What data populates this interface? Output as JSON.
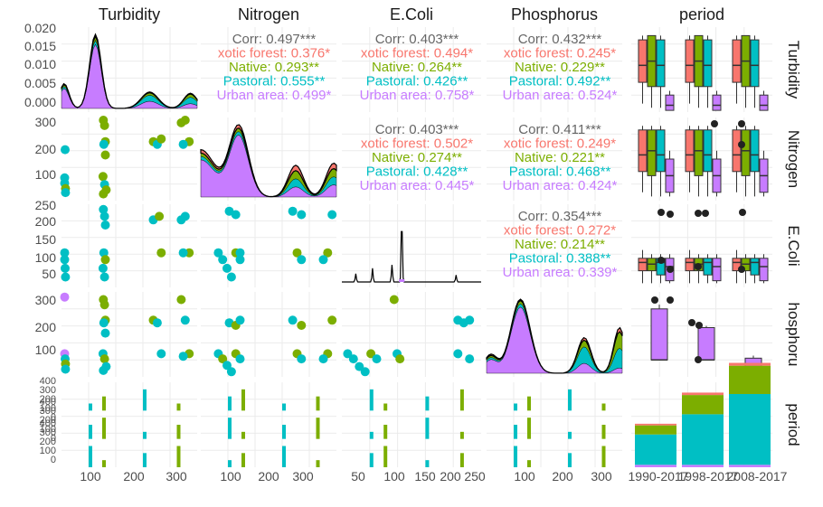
{
  "colors": {
    "Exotic forest": "#F8766D",
    "Native": "#7CAE00",
    "Pastoral": "#00BFC4",
    "Urban area": "#C77CFF",
    "overall": "#666666",
    "panel_bg": "#ffffff",
    "grid": "#ebebeb"
  },
  "chart_data": {
    "type": "scatter",
    "variables": [
      "Turbidity",
      "Nitrogen",
      "E.Coli",
      "Phosphorus",
      "period"
    ],
    "groups": [
      "Exotic forest",
      "Native",
      "Pastoral",
      "Urban area"
    ],
    "strip_labels": {
      "top": [
        "Turbidity",
        "Nitrogen",
        "E.Coli",
        "Phosphorus",
        "period"
      ],
      "right": [
        "Turbidity",
        "Nitrogen",
        "E.Coli",
        "hosphoru",
        "period"
      ]
    },
    "row_ticks": [
      [
        "0.000",
        "0.005",
        "0.010",
        "0.015",
        "0.020"
      ],
      [
        "100",
        "200",
        "300"
      ],
      [
        "50",
        "100",
        "150",
        "200",
        "250"
      ],
      [
        "100",
        "200",
        "300"
      ],
      [
        "0",
        "100",
        "200",
        "300",
        "400",
        "0",
        "100",
        "200",
        "300",
        "400",
        "0",
        "100",
        "200",
        "300",
        "400"
      ]
    ],
    "col_ticks": [
      [
        "100",
        "200",
        "300"
      ],
      [
        "100",
        "200",
        "300"
      ],
      [
        "50",
        "100",
        "150",
        "200",
        "250"
      ],
      [
        "100",
        "200",
        "300"
      ],
      [
        "1990-2017",
        "1998-2017",
        "2008-2017"
      ]
    ],
    "correlations": [
      {
        "pair": [
          "Turbidity",
          "Nitrogen"
        ],
        "lines": [
          "Corr: 0.497***",
          "xotic forest: 0.376*",
          "Native: 0.293**",
          "Pastoral: 0.555**",
          "Urban area: 0.499*"
        ]
      },
      {
        "pair": [
          "Turbidity",
          "E.Coli"
        ],
        "lines": [
          "Corr: 0.403***",
          "xotic forest: 0.494*",
          "Native: 0.264**",
          "Pastoral: 0.426**",
          "Urban area: 0.758*"
        ]
      },
      {
        "pair": [
          "Turbidity",
          "Phosphorus"
        ],
        "lines": [
          "Corr: 0.432***",
          "xotic forest: 0.245*",
          "Native: 0.229**",
          "Pastoral: 0.492**",
          "Urban area: 0.524*"
        ]
      },
      {
        "pair": [
          "Nitrogen",
          "E.Coli"
        ],
        "lines": [
          "Corr: 0.403***",
          "xotic forest: 0.502*",
          "Native: 0.274**",
          "Pastoral: 0.428**",
          "Urban area: 0.445*"
        ]
      },
      {
        "pair": [
          "Nitrogen",
          "Phosphorus"
        ],
        "lines": [
          "Corr: 0.411***",
          "xotic forest: 0.249*",
          "Native: 0.221**",
          "Pastoral: 0.468**",
          "Urban area: 0.424*"
        ]
      },
      {
        "pair": [
          "E.Coli",
          "Phosphorus"
        ],
        "lines": [
          "Corr: 0.354***",
          "xotic forest: 0.272*",
          "Native: 0.214**",
          "Pastoral: 0.388**",
          "Urban area: 0.339*"
        ]
      }
    ],
    "period_counts": {
      "categories": [
        "1990-2017",
        "1998-2017",
        "2008-2017"
      ],
      "series": [
        {
          "name": "Exotic forest",
          "values": [
            8,
            12,
            14
          ]
        },
        {
          "name": "Native",
          "values": [
            45,
            95,
            140
          ]
        },
        {
          "name": "Pastoral",
          "values": [
            150,
            250,
            350
          ]
        },
        {
          "name": "Urban area",
          "values": [
            12,
            12,
            12
          ]
        }
      ],
      "ylim": [
        0,
        420
      ]
    },
    "scatter_points": {
      "Turbidity_Nitrogen": [
        [
          8,
          115,
          "Pastoral"
        ],
        [
          8,
          95,
          "Pastoral"
        ],
        [
          9,
          220,
          "Pastoral"
        ],
        [
          10,
          75,
          "Native"
        ],
        [
          10,
          60,
          "Pastoral"
        ],
        [
          105,
          330,
          "Native"
        ],
        [
          108,
          310,
          "Native"
        ],
        [
          110,
          250,
          "Native"
        ],
        [
          106,
          240,
          "Pastoral"
        ],
        [
          110,
          200,
          "Native"
        ],
        [
          104,
          120,
          "Native"
        ],
        [
          108,
          90,
          "Pastoral"
        ],
        [
          112,
          70,
          "Native"
        ],
        [
          105,
          55,
          "Native"
        ],
        [
          230,
          250,
          "Native"
        ],
        [
          240,
          240,
          "Pastoral"
        ],
        [
          250,
          260,
          "Native"
        ],
        [
          300,
          320,
          "Native"
        ],
        [
          310,
          330,
          "Native"
        ],
        [
          320,
          250,
          "Native"
        ],
        [
          305,
          240,
          "Pastoral"
        ]
      ],
      "Turbidity_EColi": [
        [
          8,
          120,
          "Pastoral"
        ],
        [
          8,
          100,
          "Pastoral"
        ],
        [
          9,
          75,
          "Pastoral"
        ],
        [
          10,
          50,
          "Pastoral"
        ],
        [
          105,
          245,
          "Pastoral"
        ],
        [
          108,
          225,
          "Pastoral"
        ],
        [
          110,
          200,
          "Pastoral"
        ],
        [
          106,
          120,
          "Pastoral"
        ],
        [
          110,
          100,
          "Native"
        ],
        [
          104,
          75,
          "Pastoral"
        ],
        [
          108,
          50,
          "Pastoral"
        ],
        [
          230,
          215,
          "Pastoral"
        ],
        [
          245,
          225,
          "Native"
        ],
        [
          250,
          120,
          "Native"
        ],
        [
          300,
          215,
          "Pastoral"
        ],
        [
          310,
          225,
          "Pastoral"
        ],
        [
          320,
          120,
          "Native"
        ],
        [
          305,
          120,
          "Pastoral"
        ]
      ],
      "Turbidity_Phosphorus": [
        [
          8,
          340,
          "Urban area"
        ],
        [
          8,
          120,
          "Urban area"
        ],
        [
          9,
          100,
          "Pastoral"
        ],
        [
          10,
          80,
          "Native"
        ],
        [
          10,
          60,
          "Pastoral"
        ],
        [
          105,
          330,
          "Native"
        ],
        [
          108,
          310,
          "Native"
        ],
        [
          110,
          250,
          "Native"
        ],
        [
          106,
          240,
          "Pastoral"
        ],
        [
          110,
          200,
          "Pastoral"
        ],
        [
          104,
          120,
          "Pastoral"
        ],
        [
          108,
          100,
          "Native"
        ],
        [
          112,
          70,
          "Pastoral"
        ],
        [
          105,
          55,
          "Pastoral"
        ],
        [
          230,
          250,
          "Native"
        ],
        [
          240,
          240,
          "Pastoral"
        ],
        [
          250,
          120,
          "Pastoral"
        ],
        [
          300,
          330,
          "Native"
        ],
        [
          310,
          250,
          "Pastoral"
        ],
        [
          320,
          120,
          "Native"
        ],
        [
          305,
          110,
          "Pastoral"
        ]
      ],
      "Nitrogen_EColi": [
        [
          70,
          120,
          "Pastoral"
        ],
        [
          80,
          100,
          "Pastoral"
        ],
        [
          90,
          75,
          "Pastoral"
        ],
        [
          100,
          50,
          "Pastoral"
        ],
        [
          110,
          120,
          "Native"
        ],
        [
          120,
          100,
          "Pastoral"
        ],
        [
          95,
          240,
          "Pastoral"
        ],
        [
          110,
          230,
          "Pastoral"
        ],
        [
          120,
          120,
          "Pastoral"
        ],
        [
          240,
          240,
          "Pastoral"
        ],
        [
          260,
          230,
          "Pastoral"
        ],
        [
          250,
          120,
          "Native"
        ],
        [
          260,
          100,
          "Pastoral"
        ],
        [
          330,
          230,
          "Pastoral"
        ],
        [
          320,
          120,
          "Native"
        ],
        [
          310,
          100,
          "Pastoral"
        ]
      ],
      "Nitrogen_Phosphorus": [
        [
          70,
          120,
          "Pastoral"
        ],
        [
          80,
          100,
          "Native"
        ],
        [
          90,
          75,
          "Pastoral"
        ],
        [
          100,
          50,
          "Pastoral"
        ],
        [
          110,
          120,
          "Native"
        ],
        [
          120,
          100,
          "Pastoral"
        ],
        [
          95,
          240,
          "Pastoral"
        ],
        [
          110,
          230,
          "Native"
        ],
        [
          120,
          250,
          "Pastoral"
        ],
        [
          240,
          250,
          "Pastoral"
        ],
        [
          260,
          230,
          "Native"
        ],
        [
          250,
          120,
          "Native"
        ],
        [
          260,
          100,
          "Pastoral"
        ],
        [
          330,
          250,
          "Native"
        ],
        [
          320,
          120,
          "Native"
        ],
        [
          310,
          100,
          "Pastoral"
        ]
      ],
      "EColi_Phosphorus": [
        [
          30,
          120,
          "Pastoral"
        ],
        [
          40,
          100,
          "Pastoral"
        ],
        [
          50,
          70,
          "Pastoral"
        ],
        [
          60,
          50,
          "Pastoral"
        ],
        [
          70,
          120,
          "Native"
        ],
        [
          80,
          100,
          "Pastoral"
        ],
        [
          110,
          330,
          "Native"
        ],
        [
          115,
          120,
          "Pastoral"
        ],
        [
          120,
          100,
          "Native"
        ],
        [
          220,
          250,
          "Pastoral"
        ],
        [
          230,
          240,
          "Pastoral"
        ],
        [
          240,
          250,
          "Pastoral"
        ],
        [
          220,
          120,
          "Pastoral"
        ],
        [
          240,
          100,
          "Pastoral"
        ]
      ]
    },
    "title": "",
    "grid": true,
    "legend": "none"
  }
}
